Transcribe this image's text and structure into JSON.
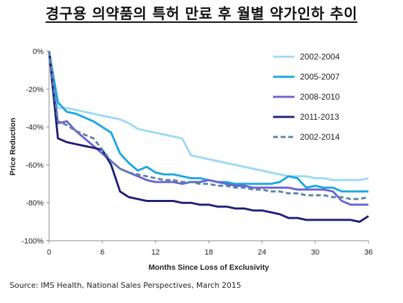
{
  "title": "경구용 의약품의 특허 만료 후 월별 약가인하 추이",
  "source": "Source: IMS Health, National Sales Perspectives, March 2015",
  "chart_data": {
    "type": "line",
    "xlabel": "Months Since Loss of Exclusivity",
    "ylabel": "Price Reduction",
    "xlim": [
      0,
      36
    ],
    "ylim": [
      -100,
      0
    ],
    "xticks": [
      0,
      6,
      12,
      18,
      24,
      30,
      36
    ],
    "yticks": [
      0,
      -20,
      -40,
      -60,
      -80,
      -100
    ],
    "ytick_labels": [
      "0%",
      "-20%",
      "-40%",
      "-60%",
      "-80%",
      "-100%"
    ],
    "legend_position": "right",
    "grid": false,
    "x": [
      0,
      1,
      2,
      3,
      4,
      5,
      6,
      7,
      8,
      9,
      10,
      11,
      12,
      13,
      14,
      15,
      16,
      17,
      18,
      19,
      20,
      21,
      22,
      23,
      24,
      25,
      26,
      27,
      28,
      29,
      30,
      31,
      32,
      33,
      34,
      35,
      36
    ],
    "series": [
      {
        "name": "2002-2004",
        "color": "#9dd9f5",
        "dash": false,
        "values": [
          0,
          -30,
          -30,
          -31,
          -32,
          -33,
          -34,
          -35,
          -36,
          -38,
          -41,
          -42,
          -43,
          -44,
          -45,
          -46,
          -55,
          -56,
          -57,
          -58,
          -59,
          -60,
          -61,
          -62,
          -63,
          -64,
          -65,
          -66,
          -66,
          -66,
          -67,
          -67,
          -68,
          -68,
          -68,
          -68,
          -67
        ]
      },
      {
        "name": "2005-2007",
        "color": "#1aa7e4",
        "dash": false,
        "values": [
          0,
          -27,
          -32,
          -33,
          -35,
          -37,
          -40,
          -43,
          -54,
          -59,
          -63,
          -61,
          -64,
          -65,
          -65,
          -66,
          -67,
          -67,
          -68,
          -69,
          -69,
          -70,
          -70,
          -70,
          -70,
          -70,
          -69,
          -66,
          -67,
          -72,
          -71,
          -72,
          -72,
          -74,
          -74,
          -74,
          -74
        ]
      },
      {
        "name": "2008-2010",
        "color": "#6b63d4",
        "dash": false,
        "values": [
          0,
          -38,
          -37,
          -42,
          -46,
          -50,
          -54,
          -58,
          -62,
          -64,
          -66,
          -68,
          -69,
          -69,
          -69,
          -70,
          -69,
          -69,
          -68,
          -69,
          -70,
          -71,
          -71,
          -72,
          -72,
          -72,
          -72,
          -72,
          -73,
          -73,
          -73,
          -73,
          -74,
          -79,
          -81,
          -81,
          -81
        ]
      },
      {
        "name": "2011-2013",
        "color": "#1f1f78",
        "dash": false,
        "values": [
          0,
          -46,
          -48,
          -49,
          -50,
          -51,
          -52,
          -60,
          -74,
          -77,
          -78,
          -79,
          -79,
          -79,
          -79,
          -80,
          -80,
          -81,
          -81,
          -82,
          -82,
          -83,
          -83,
          -84,
          -84,
          -85,
          -86,
          -88,
          -88,
          -89,
          -89,
          -89,
          -89,
          -89,
          -89,
          -90,
          -87
        ]
      },
      {
        "name": "2002-2014",
        "color": "#5b84a8",
        "dash": true,
        "values": [
          0,
          -37,
          -39,
          -42,
          -44,
          -46,
          -52,
          -58,
          -62,
          -64,
          -65,
          -66,
          -67,
          -68,
          -68,
          -69,
          -69,
          -70,
          -70,
          -71,
          -71,
          -72,
          -72,
          -73,
          -73,
          -74,
          -74,
          -75,
          -75,
          -76,
          -76,
          -76,
          -77,
          -77,
          -78,
          -78,
          -77
        ]
      }
    ]
  }
}
